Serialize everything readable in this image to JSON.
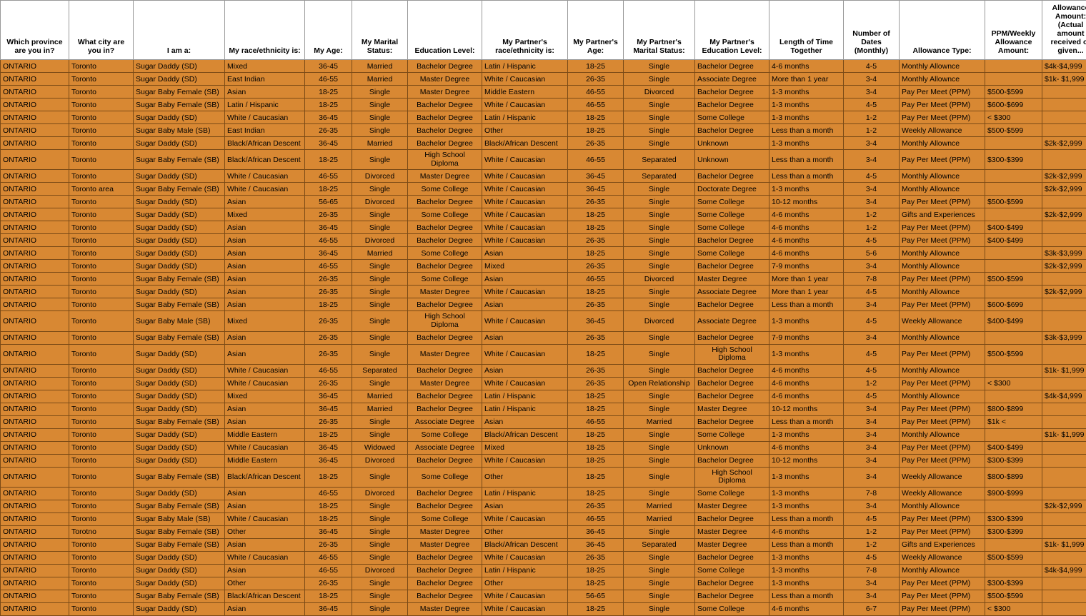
{
  "table": {
    "background_color": "#d88833",
    "border_color": "#7a4a16",
    "header_bg": "#ffffff",
    "text_color": "#000000",
    "font_size_pt": 8,
    "header_font_weight": "bold",
    "centered_columns": [
      4,
      5,
      6,
      8,
      9,
      12
    ],
    "wrap_columns_center": [
      6,
      10
    ],
    "columns": [
      "Which province are you in?",
      "What city are you in?",
      "I am a:",
      "My race/ethnicity is:",
      "My Age:",
      "My Marital Status:",
      "Education Level:",
      "My Partner's race/ethnicity is:",
      "My Partner's Age:",
      "My Partner's Marital Status:",
      "My Partner's Education Level:",
      "Length of Time Together",
      "Number of Dates (Monthly)",
      "Allowance Type:",
      "PPM/Weekly Allowance Amount:",
      "Allowance Amount: (Actual amount received or given..."
    ],
    "rows": [
      [
        "ONTARIO",
        "Toronto",
        "Sugar Daddy (SD)",
        "Mixed",
        "36-45",
        "Married",
        "Bachelor Degree",
        "Latin / Hispanic",
        "18-25",
        "Single",
        "Bachelor Degree",
        "4-6 months",
        "4-5",
        "Monthly Allownce",
        "",
        "$4k-$4,999"
      ],
      [
        "ONTARIO",
        "Toronto",
        "Sugar Daddy (SD)",
        "East Indian",
        "46-55",
        "Married",
        "Master Degree",
        "White / Caucasian",
        "26-35",
        "Single",
        "Associate Degree",
        "More than 1 year",
        "3-4",
        "Monthly Allownce",
        "",
        "$1k- $1,999"
      ],
      [
        "ONTARIO",
        "Toronto",
        "Sugar Baby Female (SB)",
        "Asian",
        "18-25",
        "Single",
        "Master Degree",
        "Middle Eastern",
        "46-55",
        "Divorced",
        "Bachelor Degree",
        "1-3 months",
        "3-4",
        "Pay Per Meet (PPM)",
        "$500-$599",
        ""
      ],
      [
        "ONTARIO",
        "Toronto",
        "Sugar Baby Female (SB)",
        "Latin / Hispanic",
        "18-25",
        "Single",
        "Bachelor Degree",
        "White / Caucasian",
        "46-55",
        "Single",
        "Bachelor Degree",
        "1-3 months",
        "4-5",
        "Pay Per Meet (PPM)",
        "$600-$699",
        ""
      ],
      [
        "ONTARIO",
        "Toronto",
        "Sugar Daddy (SD)",
        "White / Caucasian",
        "36-45",
        "Single",
        "Bachelor Degree",
        "Latin / Hispanic",
        "18-25",
        "Single",
        "Some College",
        "1-3 months",
        "1-2",
        "Pay Per Meet (PPM)",
        "< $300",
        ""
      ],
      [
        "ONTARIO",
        "Toronto",
        "Sugar Baby Male (SB)",
        "East Indian",
        "26-35",
        "Single",
        "Bachelor Degree",
        "Other",
        "18-25",
        "Single",
        "Bachelor Degree",
        "Less than a month",
        "1-2",
        "Weekly Allowance",
        "$500-$599",
        ""
      ],
      [
        "ONTARIO",
        "Toronto",
        "Sugar Daddy (SD)",
        "Black/African Descent",
        "36-45",
        "Married",
        "Bachelor Degree",
        "Black/African Descent",
        "26-35",
        "Single",
        "Unknown",
        "1-3 months",
        "3-4",
        "Monthly Allownce",
        "",
        "$2k-$2,999"
      ],
      [
        "ONTARIO",
        "Toronto",
        "Sugar Baby Female (SB)",
        "Black/African Descent",
        "18-25",
        "Single",
        "High School Diploma",
        "White / Caucasian",
        "46-55",
        "Separated",
        "Unknown",
        "Less than a month",
        "3-4",
        "Pay Per Meet (PPM)",
        "$300-$399",
        ""
      ],
      [
        "ONTARIO",
        "Toronto",
        "Sugar Daddy (SD)",
        "White / Caucasian",
        "46-55",
        "Divorced",
        "Master Degree",
        "White / Caucasian",
        "36-45",
        "Separated",
        "Bachelor Degree",
        "Less than a month",
        "4-5",
        "Monthly Allownce",
        "",
        "$2k-$2,999"
      ],
      [
        "ONTARIO",
        "Toronto area",
        "Sugar Baby Female (SB)",
        "White / Caucasian",
        "18-25",
        "Single",
        "Some College",
        "White / Caucasian",
        "36-45",
        "Single",
        "Doctorate Degree",
        "1-3 months",
        "3-4",
        "Monthly Allownce",
        "",
        "$2k-$2,999"
      ],
      [
        "ONTARIO",
        "Toronto",
        "Sugar Daddy (SD)",
        "Asian",
        "56-65",
        "Divorced",
        "Bachelor Degree",
        "White / Caucasian",
        "26-35",
        "Single",
        "Some College",
        "10-12 months",
        "3-4",
        "Pay Per Meet (PPM)",
        "$500-$599",
        ""
      ],
      [
        "ONTARIO",
        "Toronto",
        "Sugar Daddy (SD)",
        "Mixed",
        "26-35",
        "Single",
        "Some College",
        "White / Caucasian",
        "18-25",
        "Single",
        "Some College",
        "4-6 months",
        "1-2",
        "Gifts and Experiences",
        "",
        "$2k-$2,999"
      ],
      [
        "ONTARIO",
        "Toronto",
        "Sugar Daddy (SD)",
        "Asian",
        "36-45",
        "Single",
        "Bachelor Degree",
        "White / Caucasian",
        "18-25",
        "Single",
        "Some College",
        "4-6 months",
        "1-2",
        "Pay Per Meet (PPM)",
        "$400-$499",
        ""
      ],
      [
        "ONTARIO",
        "Toronto",
        "Sugar Daddy (SD)",
        "Asian",
        "46-55",
        "Divorced",
        "Bachelor Degree",
        "White / Caucasian",
        "26-35",
        "Single",
        "Bachelor Degree",
        "4-6 months",
        "4-5",
        "Pay Per Meet (PPM)",
        "$400-$499",
        ""
      ],
      [
        "ONTARIO",
        "Toronto",
        "Sugar Daddy (SD)",
        "Asian",
        "36-45",
        "Married",
        "Some College",
        "Asian",
        "18-25",
        "Single",
        "Some College",
        "4-6 months",
        "5-6",
        "Monthly Allownce",
        "",
        "$3k-$3,999"
      ],
      [
        "ONTARIO",
        "Toronto",
        "Sugar Daddy (SD)",
        "Asian",
        "46-55",
        "Single",
        "Bachelor Degree",
        "Mixed",
        "26-35",
        "Single",
        "Bachelor Degree",
        "7-9 months",
        "3-4",
        "Monthly Allownce",
        "",
        "$2k-$2,999"
      ],
      [
        "ONTARIO",
        "Toronto",
        "Sugar Baby Female (SB)",
        "Asian",
        "26-35",
        "Single",
        "Some College",
        "Asian",
        "46-55",
        "Divorced",
        "Master Degree",
        "More than 1 year",
        "7-8",
        "Pay Per Meet (PPM)",
        "$500-$599",
        ""
      ],
      [
        "ONTARIO",
        "Toronto",
        "Sugar Daddy (SD)",
        "Asian",
        "26-35",
        "Single",
        "Master Degree",
        "White / Caucasian",
        "18-25",
        "Single",
        "Associate Degree",
        "More than 1 year",
        "4-5",
        "Monthly Allownce",
        "",
        "$2k-$2,999"
      ],
      [
        "ONTARIO",
        "Toronto",
        "Sugar Baby Female (SB)",
        "Asian",
        "18-25",
        "Single",
        "Bachelor Degree",
        "Asian",
        "26-35",
        "Single",
        "Bachelor Degree",
        "Less than a month",
        "3-4",
        "Pay Per Meet (PPM)",
        "$600-$699",
        ""
      ],
      [
        "ONTARIO",
        "Toronto",
        "Sugar Baby Male (SB)",
        "Mixed",
        "26-35",
        "Single",
        "High School Diploma",
        "White / Caucasian",
        "36-45",
        "Divorced",
        "Associate Degree",
        "1-3 months",
        "4-5",
        "Weekly Allowance",
        "$400-$499",
        ""
      ],
      [
        "ONTARIO",
        "Toronto",
        "Sugar Baby Female (SB)",
        "Asian",
        "26-35",
        "Single",
        "Bachelor Degree",
        "Asian",
        "26-35",
        "Single",
        "Bachelor Degree",
        "7-9 months",
        "3-4",
        "Monthly Allownce",
        "",
        "$3k-$3,999"
      ],
      [
        "ONTARIO",
        "Toronto",
        "Sugar Daddy (SD)",
        "Asian",
        "26-35",
        "Single",
        "Master Degree",
        "White / Caucasian",
        "18-25",
        "Single",
        "High School Diploma",
        "1-3 months",
        "4-5",
        "Pay Per Meet (PPM)",
        "$500-$599",
        ""
      ],
      [
        "ONTARIO",
        "Toronto",
        "Sugar Daddy (SD)",
        "White / Caucasian",
        "46-55",
        "Separated",
        "Bachelor Degree",
        "Asian",
        "26-35",
        "Single",
        "Bachelor Degree",
        "4-6 months",
        "4-5",
        "Monthly Allownce",
        "",
        "$1k- $1,999"
      ],
      [
        "ONTARIO",
        "Toronto",
        "Sugar Daddy (SD)",
        "White / Caucasian",
        "26-35",
        "Single",
        "Master Degree",
        "White / Caucasian",
        "26-35",
        "Open Relationship",
        "Bachelor Degree",
        "4-6 months",
        "1-2",
        "Pay Per Meet (PPM)",
        "< $300",
        ""
      ],
      [
        "ONTARIO",
        "Toronto",
        "Sugar Daddy (SD)",
        "Mixed",
        "36-45",
        "Married",
        "Bachelor Degree",
        "Latin / Hispanic",
        "18-25",
        "Single",
        "Bachelor Degree",
        "4-6 months",
        "4-5",
        "Monthly Allownce",
        "",
        "$4k-$4,999"
      ],
      [
        "ONTARIO",
        "Toronto",
        "Sugar Daddy (SD)",
        "Asian",
        "36-45",
        "Married",
        "Bachelor Degree",
        "Latin / Hispanic",
        "18-25",
        "Single",
        "Master Degree",
        "10-12 months",
        "3-4",
        "Pay Per Meet (PPM)",
        "$800-$899",
        ""
      ],
      [
        "ONTARIO",
        "Toronto",
        "Sugar Baby Female (SB)",
        "Asian",
        "26-35",
        "Single",
        "Associate Degree",
        "Asian",
        "46-55",
        "Married",
        "Bachelor Degree",
        "Less than a month",
        "3-4",
        "Pay Per Meet (PPM)",
        "$1k <",
        ""
      ],
      [
        "ONTARIO",
        "Toronto",
        "Sugar Daddy (SD)",
        "Middle Eastern",
        "18-25",
        "Single",
        "Some College",
        "Black/African Descent",
        "18-25",
        "Single",
        "Some College",
        "1-3 months",
        "3-4",
        "Monthly Allownce",
        "",
        "$1k- $1,999"
      ],
      [
        "ONTARIO",
        "Toronto",
        "Sugar Daddy (SD)",
        "White / Caucasian",
        "36-45",
        "Widowed",
        "Associate Degree",
        "Mixed",
        "18-25",
        "Single",
        "Unknown",
        "4-6 months",
        "3-4",
        "Pay Per Meet (PPM)",
        "$400-$499",
        ""
      ],
      [
        "ONTARIO",
        "Toronto",
        "Sugar Daddy (SD)",
        "Middle Eastern",
        "36-45",
        "Divorced",
        "Bachelor Degree",
        "White / Caucasian",
        "18-25",
        "Single",
        "Bachelor Degree",
        "10-12 months",
        "3-4",
        "Pay Per Meet (PPM)",
        "$300-$399",
        ""
      ],
      [
        "ONTARIO",
        "Toronto",
        "Sugar Baby Female (SB)",
        "Black/African Descent",
        "18-25",
        "Single",
        "Some College",
        "Other",
        "18-25",
        "Single",
        "High School Diploma",
        "1-3 months",
        "3-4",
        "Weekly Allowance",
        "$800-$899",
        ""
      ],
      [
        "ONTARIO",
        "Toronto",
        "Sugar Daddy (SD)",
        "Asian",
        "46-55",
        "Divorced",
        "Bachelor Degree",
        "Latin / Hispanic",
        "18-25",
        "Single",
        "Some College",
        "1-3 months",
        "7-8",
        "Weekly Allowance",
        "$900-$999",
        ""
      ],
      [
        "ONTARIO",
        "Toronto",
        "Sugar Baby Female (SB)",
        "Asian",
        "18-25",
        "Single",
        "Bachelor Degree",
        "Asian",
        "26-35",
        "Married",
        "Master Degree",
        "1-3 months",
        "3-4",
        "Monthly Allownce",
        "",
        "$2k-$2,999"
      ],
      [
        "ONTARIO",
        "Toronto",
        "Sugar Baby Male (SB)",
        "White / Caucasian",
        "18-25",
        "Single",
        "Some College",
        "White / Caucasian",
        "46-55",
        "Married",
        "Bachelor Degree",
        "Less than a month",
        "4-5",
        "Pay Per Meet (PPM)",
        "$300-$399",
        ""
      ],
      [
        "ONTARIO",
        "Torotno",
        "Sugar Baby Female (SB)",
        "Other",
        "36-45",
        "Single",
        "Master Degree",
        "Other",
        "36-45",
        "Single",
        "Master Degree",
        "4-6 months",
        "1-2",
        "Pay Per Meet (PPM)",
        "$300-$399",
        ""
      ],
      [
        "ONTARIO",
        "Toronto",
        "Sugar Baby Female (SB)",
        "Asian",
        "26-35",
        "Single",
        "Master Degree",
        "Black/African Descent",
        "36-45",
        "Separated",
        "Master Degree",
        "Less than a month",
        "1-2",
        "Gifts and Experiences",
        "",
        "$1k- $1,999"
      ],
      [
        "ONTARIO",
        "Toronto",
        "Sugar Daddy (SD)",
        "White / Caucasian",
        "46-55",
        "Single",
        "Bachelor Degree",
        "White / Caucasian",
        "26-35",
        "Single",
        "Bachelor Degree",
        "1-3 months",
        "4-5",
        "Weekly Allowance",
        "$500-$599",
        ""
      ],
      [
        "ONTARIO",
        "Toronto",
        "Sugar Daddy (SD)",
        "Asian",
        "46-55",
        "Divorced",
        "Bachelor Degree",
        "Latin / Hispanic",
        "18-25",
        "Single",
        "Some College",
        "1-3 months",
        "7-8",
        "Monthly Allownce",
        "",
        "$4k-$4,999"
      ],
      [
        "ONTARIO",
        "Toronto",
        "Sugar Daddy (SD)",
        "Other",
        "26-35",
        "Single",
        "Bachelor Degree",
        "Other",
        "18-25",
        "Single",
        "Bachelor Degree",
        "1-3 months",
        "3-4",
        "Pay Per Meet (PPM)",
        "$300-$399",
        ""
      ],
      [
        "ONTARIO",
        "Toronto",
        "Sugar Baby Female (SB)",
        "Black/African Descent",
        "18-25",
        "Single",
        "Bachelor Degree",
        "White / Caucasian",
        "56-65",
        "Single",
        "Bachelor Degree",
        "Less than a month",
        "3-4",
        "Pay Per Meet (PPM)",
        "$500-$599",
        ""
      ],
      [
        "ONTARIO",
        "Toronto",
        "Sugar Daddy (SD)",
        "Asian",
        "36-45",
        "Single",
        "Master Degree",
        "White / Caucasian",
        "18-25",
        "Single",
        "Some College",
        "4-6 months",
        "6-7",
        "Pay Per Meet (PPM)",
        "< $300",
        ""
      ]
    ]
  }
}
